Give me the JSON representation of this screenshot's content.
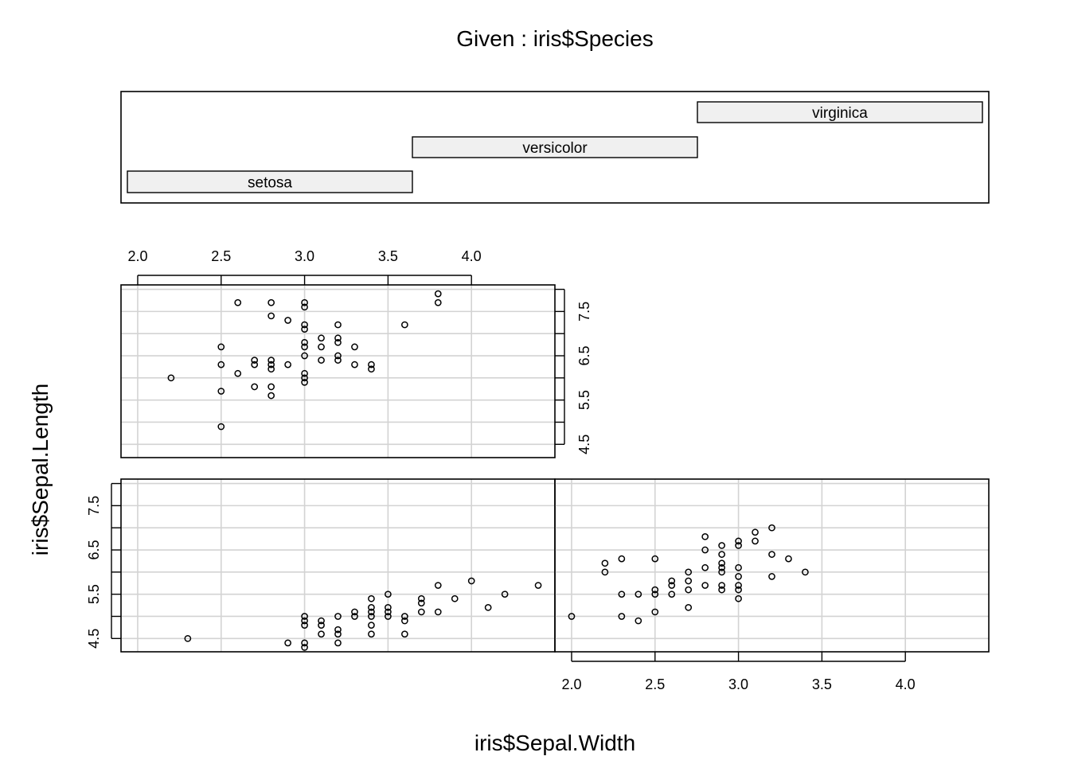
{
  "chart_data": {
    "type": "scatter",
    "title": "Given : iris$Species",
    "xlabel": "iris$Sepal.Width",
    "ylabel": "iris$Sepal.Length",
    "xlim": [
      1.9,
      4.5
    ],
    "ylim": [
      4.2,
      8.1
    ],
    "x_ticks": [
      "2.0",
      "2.5",
      "3.0",
      "3.5",
      "4.0"
    ],
    "y_ticks": [
      "4.5",
      "5.5",
      "6.5",
      "7.5"
    ],
    "given": {
      "levels": [
        "setosa",
        "versicolor",
        "virginica"
      ]
    },
    "panels": [
      {
        "name": "setosa",
        "points": [
          [
            2.3,
            4.5
          ],
          [
            2.9,
            4.4
          ],
          [
            3.0,
            4.3
          ],
          [
            3.0,
            4.4
          ],
          [
            3.0,
            4.8
          ],
          [
            3.0,
            4.9
          ],
          [
            3.0,
            5.0
          ],
          [
            3.1,
            4.6
          ],
          [
            3.1,
            4.8
          ],
          [
            3.1,
            4.9
          ],
          [
            3.2,
            4.4
          ],
          [
            3.2,
            4.6
          ],
          [
            3.2,
            4.7
          ],
          [
            3.2,
            5.0
          ],
          [
            3.3,
            5.0
          ],
          [
            3.3,
            5.1
          ],
          [
            3.4,
            4.6
          ],
          [
            3.4,
            4.8
          ],
          [
            3.4,
            5.0
          ],
          [
            3.4,
            5.1
          ],
          [
            3.4,
            5.2
          ],
          [
            3.4,
            5.4
          ],
          [
            3.5,
            5.0
          ],
          [
            3.5,
            5.1
          ],
          [
            3.5,
            5.2
          ],
          [
            3.5,
            5.5
          ],
          [
            3.6,
            4.6
          ],
          [
            3.6,
            4.9
          ],
          [
            3.6,
            5.0
          ],
          [
            3.7,
            5.1
          ],
          [
            3.7,
            5.3
          ],
          [
            3.7,
            5.4
          ],
          [
            3.8,
            5.1
          ],
          [
            3.8,
            5.7
          ],
          [
            3.9,
            5.4
          ],
          [
            4.0,
            5.8
          ],
          [
            4.1,
            5.2
          ],
          [
            4.2,
            5.5
          ],
          [
            4.4,
            5.7
          ]
        ]
      },
      {
        "name": "versicolor",
        "points": [
          [
            2.0,
            5.0
          ],
          [
            2.2,
            6.0
          ],
          [
            2.2,
            6.2
          ],
          [
            2.3,
            5.0
          ],
          [
            2.3,
            5.5
          ],
          [
            2.3,
            6.3
          ],
          [
            2.4,
            4.9
          ],
          [
            2.4,
            5.5
          ],
          [
            2.5,
            5.1
          ],
          [
            2.5,
            5.5
          ],
          [
            2.5,
            5.6
          ],
          [
            2.5,
            6.3
          ],
          [
            2.6,
            5.5
          ],
          [
            2.6,
            5.7
          ],
          [
            2.6,
            5.8
          ],
          [
            2.7,
            5.2
          ],
          [
            2.7,
            5.6
          ],
          [
            2.7,
            5.8
          ],
          [
            2.7,
            6.0
          ],
          [
            2.8,
            5.7
          ],
          [
            2.8,
            6.1
          ],
          [
            2.8,
            6.5
          ],
          [
            2.8,
            6.8
          ],
          [
            2.9,
            5.6
          ],
          [
            2.9,
            5.7
          ],
          [
            2.9,
            6.0
          ],
          [
            2.9,
            6.1
          ],
          [
            2.9,
            6.2
          ],
          [
            2.9,
            6.4
          ],
          [
            2.9,
            6.6
          ],
          [
            3.0,
            5.4
          ],
          [
            3.0,
            5.6
          ],
          [
            3.0,
            5.7
          ],
          [
            3.0,
            5.9
          ],
          [
            3.0,
            6.1
          ],
          [
            3.0,
            6.6
          ],
          [
            3.0,
            6.7
          ],
          [
            3.1,
            6.7
          ],
          [
            3.1,
            6.9
          ],
          [
            3.2,
            5.9
          ],
          [
            3.2,
            6.4
          ],
          [
            3.2,
            7.0
          ],
          [
            3.3,
            6.3
          ],
          [
            3.4,
            6.0
          ]
        ]
      },
      {
        "name": "virginica",
        "points": [
          [
            2.2,
            6.0
          ],
          [
            2.5,
            4.9
          ],
          [
            2.5,
            5.7
          ],
          [
            2.5,
            6.3
          ],
          [
            2.5,
            6.7
          ],
          [
            2.6,
            6.1
          ],
          [
            2.6,
            7.7
          ],
          [
            2.7,
            5.8
          ],
          [
            2.7,
            6.3
          ],
          [
            2.7,
            6.4
          ],
          [
            2.8,
            5.6
          ],
          [
            2.8,
            5.8
          ],
          [
            2.8,
            6.2
          ],
          [
            2.8,
            6.3
          ],
          [
            2.8,
            6.4
          ],
          [
            2.8,
            7.4
          ],
          [
            2.8,
            7.7
          ],
          [
            2.9,
            6.3
          ],
          [
            2.9,
            7.3
          ],
          [
            3.0,
            5.9
          ],
          [
            3.0,
            6.0
          ],
          [
            3.0,
            6.1
          ],
          [
            3.0,
            6.5
          ],
          [
            3.0,
            6.7
          ],
          [
            3.0,
            6.8
          ],
          [
            3.0,
            7.1
          ],
          [
            3.0,
            7.2
          ],
          [
            3.0,
            7.6
          ],
          [
            3.0,
            7.7
          ],
          [
            3.1,
            6.4
          ],
          [
            3.1,
            6.7
          ],
          [
            3.1,
            6.9
          ],
          [
            3.2,
            6.4
          ],
          [
            3.2,
            6.5
          ],
          [
            3.2,
            6.8
          ],
          [
            3.2,
            6.9
          ],
          [
            3.2,
            7.2
          ],
          [
            3.3,
            6.3
          ],
          [
            3.3,
            6.7
          ],
          [
            3.4,
            6.2
          ],
          [
            3.4,
            6.3
          ],
          [
            3.6,
            7.2
          ],
          [
            3.8,
            7.7
          ],
          [
            3.8,
            7.9
          ]
        ]
      }
    ]
  }
}
